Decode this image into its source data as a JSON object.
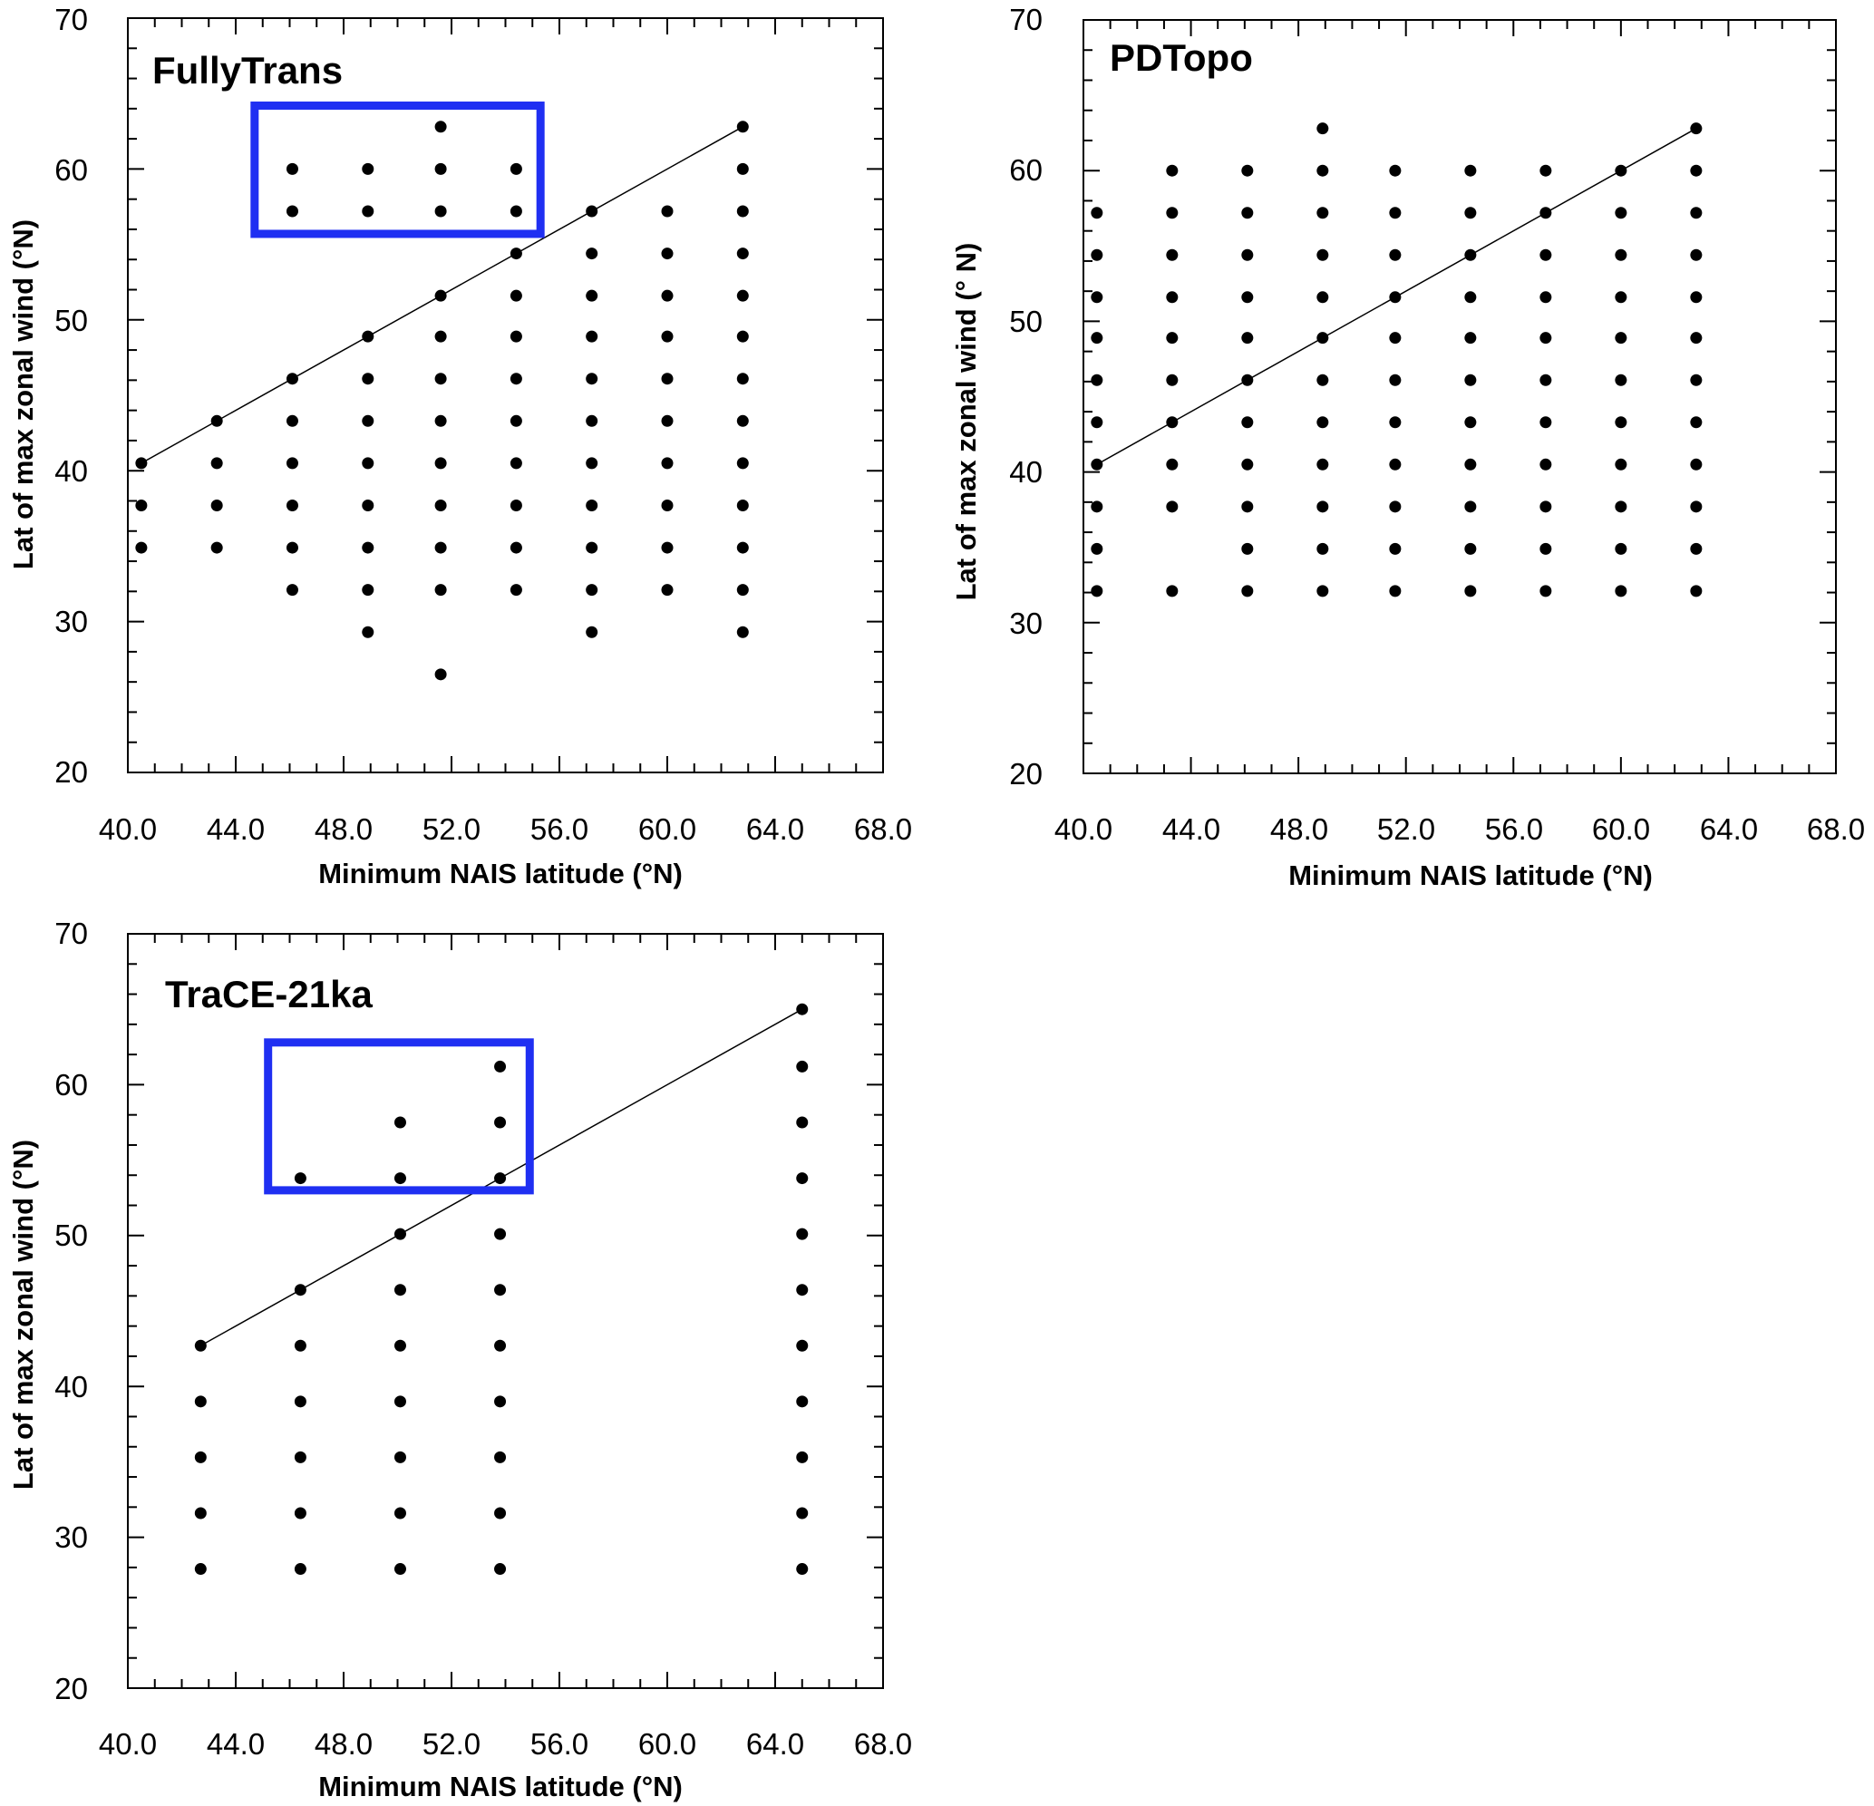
{
  "chart_data": [
    {
      "type": "scatter",
      "title": "FullyTrans",
      "xlabel": "Minimum NAIS latitude (°N)",
      "ylabel": "Lat of max zonal wind (°N)",
      "xlim": [
        40,
        68
      ],
      "ylim": [
        20,
        70
      ],
      "xticks": [
        "40.0",
        "44.0",
        "48.0",
        "52.0",
        "56.0",
        "60.0",
        "64.0",
        "68.0"
      ],
      "yticks": [
        "20",
        "30",
        "40",
        "50",
        "60",
        "70"
      ],
      "columns": [
        {
          "x": 40.5,
          "y": [
            34.9,
            37.7,
            40.5
          ]
        },
        {
          "x": 43.3,
          "y": [
            34.9,
            37.7,
            40.5,
            43.3
          ]
        },
        {
          "x": 46.1,
          "y": [
            32.1,
            34.9,
            37.7,
            40.5,
            43.3,
            46.1,
            57.2,
            60.0
          ]
        },
        {
          "x": 48.9,
          "y": [
            29.3,
            32.1,
            34.9,
            37.7,
            40.5,
            43.3,
            46.1,
            48.9,
            57.2,
            60.0
          ]
        },
        {
          "x": 51.6,
          "y": [
            26.5,
            32.1,
            34.9,
            37.7,
            40.5,
            43.3,
            46.1,
            48.9,
            51.6,
            57.2,
            60.0,
            62.8
          ]
        },
        {
          "x": 54.4,
          "y": [
            32.1,
            34.9,
            37.7,
            40.5,
            43.3,
            46.1,
            48.9,
            51.6,
            54.4,
            57.2,
            60.0
          ]
        },
        {
          "x": 57.2,
          "y": [
            29.3,
            32.1,
            34.9,
            37.7,
            40.5,
            43.3,
            46.1,
            48.9,
            51.6,
            54.4,
            57.2
          ]
        },
        {
          "x": 60.0,
          "y": [
            32.1,
            34.9,
            37.7,
            40.5,
            43.3,
            46.1,
            48.9,
            51.6,
            54.4,
            57.2
          ]
        },
        {
          "x": 62.8,
          "y": [
            29.3,
            32.1,
            34.9,
            37.7,
            40.5,
            43.3,
            46.1,
            48.9,
            51.6,
            54.4,
            57.2,
            60.0,
            62.8
          ]
        }
      ],
      "line": {
        "x": [
          40.5,
          62.8
        ],
        "y": [
          40.5,
          62.8
        ]
      },
      "highlight_box": {
        "x": [
          44.7,
          55.3
        ],
        "y": [
          55.7,
          64.2
        ],
        "color": "#1f2ff2"
      }
    },
    {
      "type": "scatter",
      "title": "PDTopo",
      "xlabel": "Minimum NAIS latitude (°N)",
      "ylabel": "Lat of max zonal wind (° N)",
      "xlim": [
        40,
        68
      ],
      "ylim": [
        20,
        70
      ],
      "xticks": [
        "40.0",
        "44.0",
        "48.0",
        "52.0",
        "56.0",
        "60.0",
        "64.0",
        "68.0"
      ],
      "yticks": [
        "20",
        "30",
        "40",
        "50",
        "60",
        "70"
      ],
      "columns": [
        {
          "x": 40.5,
          "y": [
            32.1,
            34.9,
            37.7,
            40.5,
            43.3,
            46.1,
            48.9,
            51.6,
            54.4,
            57.2
          ]
        },
        {
          "x": 43.3,
          "y": [
            32.1,
            37.7,
            40.5,
            43.3,
            46.1,
            48.9,
            51.6,
            54.4,
            57.2,
            60.0
          ]
        },
        {
          "x": 46.1,
          "y": [
            32.1,
            34.9,
            37.7,
            40.5,
            43.3,
            46.1,
            48.9,
            51.6,
            54.4,
            57.2,
            60.0
          ]
        },
        {
          "x": 48.9,
          "y": [
            32.1,
            34.9,
            37.7,
            40.5,
            43.3,
            46.1,
            48.9,
            51.6,
            54.4,
            57.2,
            60.0,
            62.8
          ]
        },
        {
          "x": 51.6,
          "y": [
            32.1,
            34.9,
            37.7,
            40.5,
            43.3,
            46.1,
            48.9,
            51.6,
            54.4,
            57.2,
            60.0
          ]
        },
        {
          "x": 54.4,
          "y": [
            32.1,
            34.9,
            37.7,
            40.5,
            43.3,
            46.1,
            48.9,
            51.6,
            54.4,
            57.2,
            60.0
          ]
        },
        {
          "x": 57.2,
          "y": [
            32.1,
            34.9,
            37.7,
            40.5,
            43.3,
            46.1,
            48.9,
            51.6,
            54.4,
            57.2,
            60.0
          ]
        },
        {
          "x": 60.0,
          "y": [
            32.1,
            34.9,
            37.7,
            40.5,
            43.3,
            46.1,
            48.9,
            51.6,
            54.4,
            57.2,
            60.0
          ]
        },
        {
          "x": 62.8,
          "y": [
            32.1,
            34.9,
            37.7,
            40.5,
            43.3,
            46.1,
            48.9,
            51.6,
            54.4,
            57.2,
            60.0,
            62.8
          ]
        }
      ],
      "line": {
        "x": [
          40.5,
          62.8
        ],
        "y": [
          40.5,
          62.8
        ]
      },
      "highlight_box": null
    },
    {
      "type": "scatter",
      "title": "TraCE-21ka",
      "xlabel": "Minimum NAIS latitude (°N)",
      "ylabel": "Lat of max zonal wind (°N)",
      "xlim": [
        40,
        68
      ],
      "ylim": [
        20,
        70
      ],
      "xticks": [
        "40.0",
        "44.0",
        "48.0",
        "52.0",
        "56.0",
        "60.0",
        "64.0",
        "68.0"
      ],
      "yticks": [
        "20",
        "30",
        "40",
        "50",
        "60",
        "70"
      ],
      "columns": [
        {
          "x": 42.7,
          "y": [
            27.9,
            31.6,
            35.3,
            39.0,
            42.7
          ]
        },
        {
          "x": 46.4,
          "y": [
            27.9,
            31.6,
            35.3,
            39.0,
            42.7,
            46.4,
            53.8
          ]
        },
        {
          "x": 50.1,
          "y": [
            27.9,
            31.6,
            35.3,
            39.0,
            42.7,
            46.4,
            50.1,
            53.8,
            57.5
          ]
        },
        {
          "x": 53.8,
          "y": [
            27.9,
            31.6,
            35.3,
            39.0,
            42.7,
            46.4,
            50.1,
            53.8,
            57.5,
            61.2
          ]
        },
        {
          "x": 65.0,
          "y": [
            27.9,
            31.6,
            35.3,
            39.0,
            42.7,
            46.4,
            50.1,
            53.8,
            57.5,
            61.2,
            65.0
          ]
        }
      ],
      "line": {
        "x": [
          42.7,
          65.0
        ],
        "y": [
          42.7,
          65.0
        ]
      },
      "highlight_box": {
        "x": [
          45.2,
          54.9
        ],
        "y": [
          53.0,
          62.8
        ],
        "color": "#1f2ff2"
      }
    }
  ]
}
